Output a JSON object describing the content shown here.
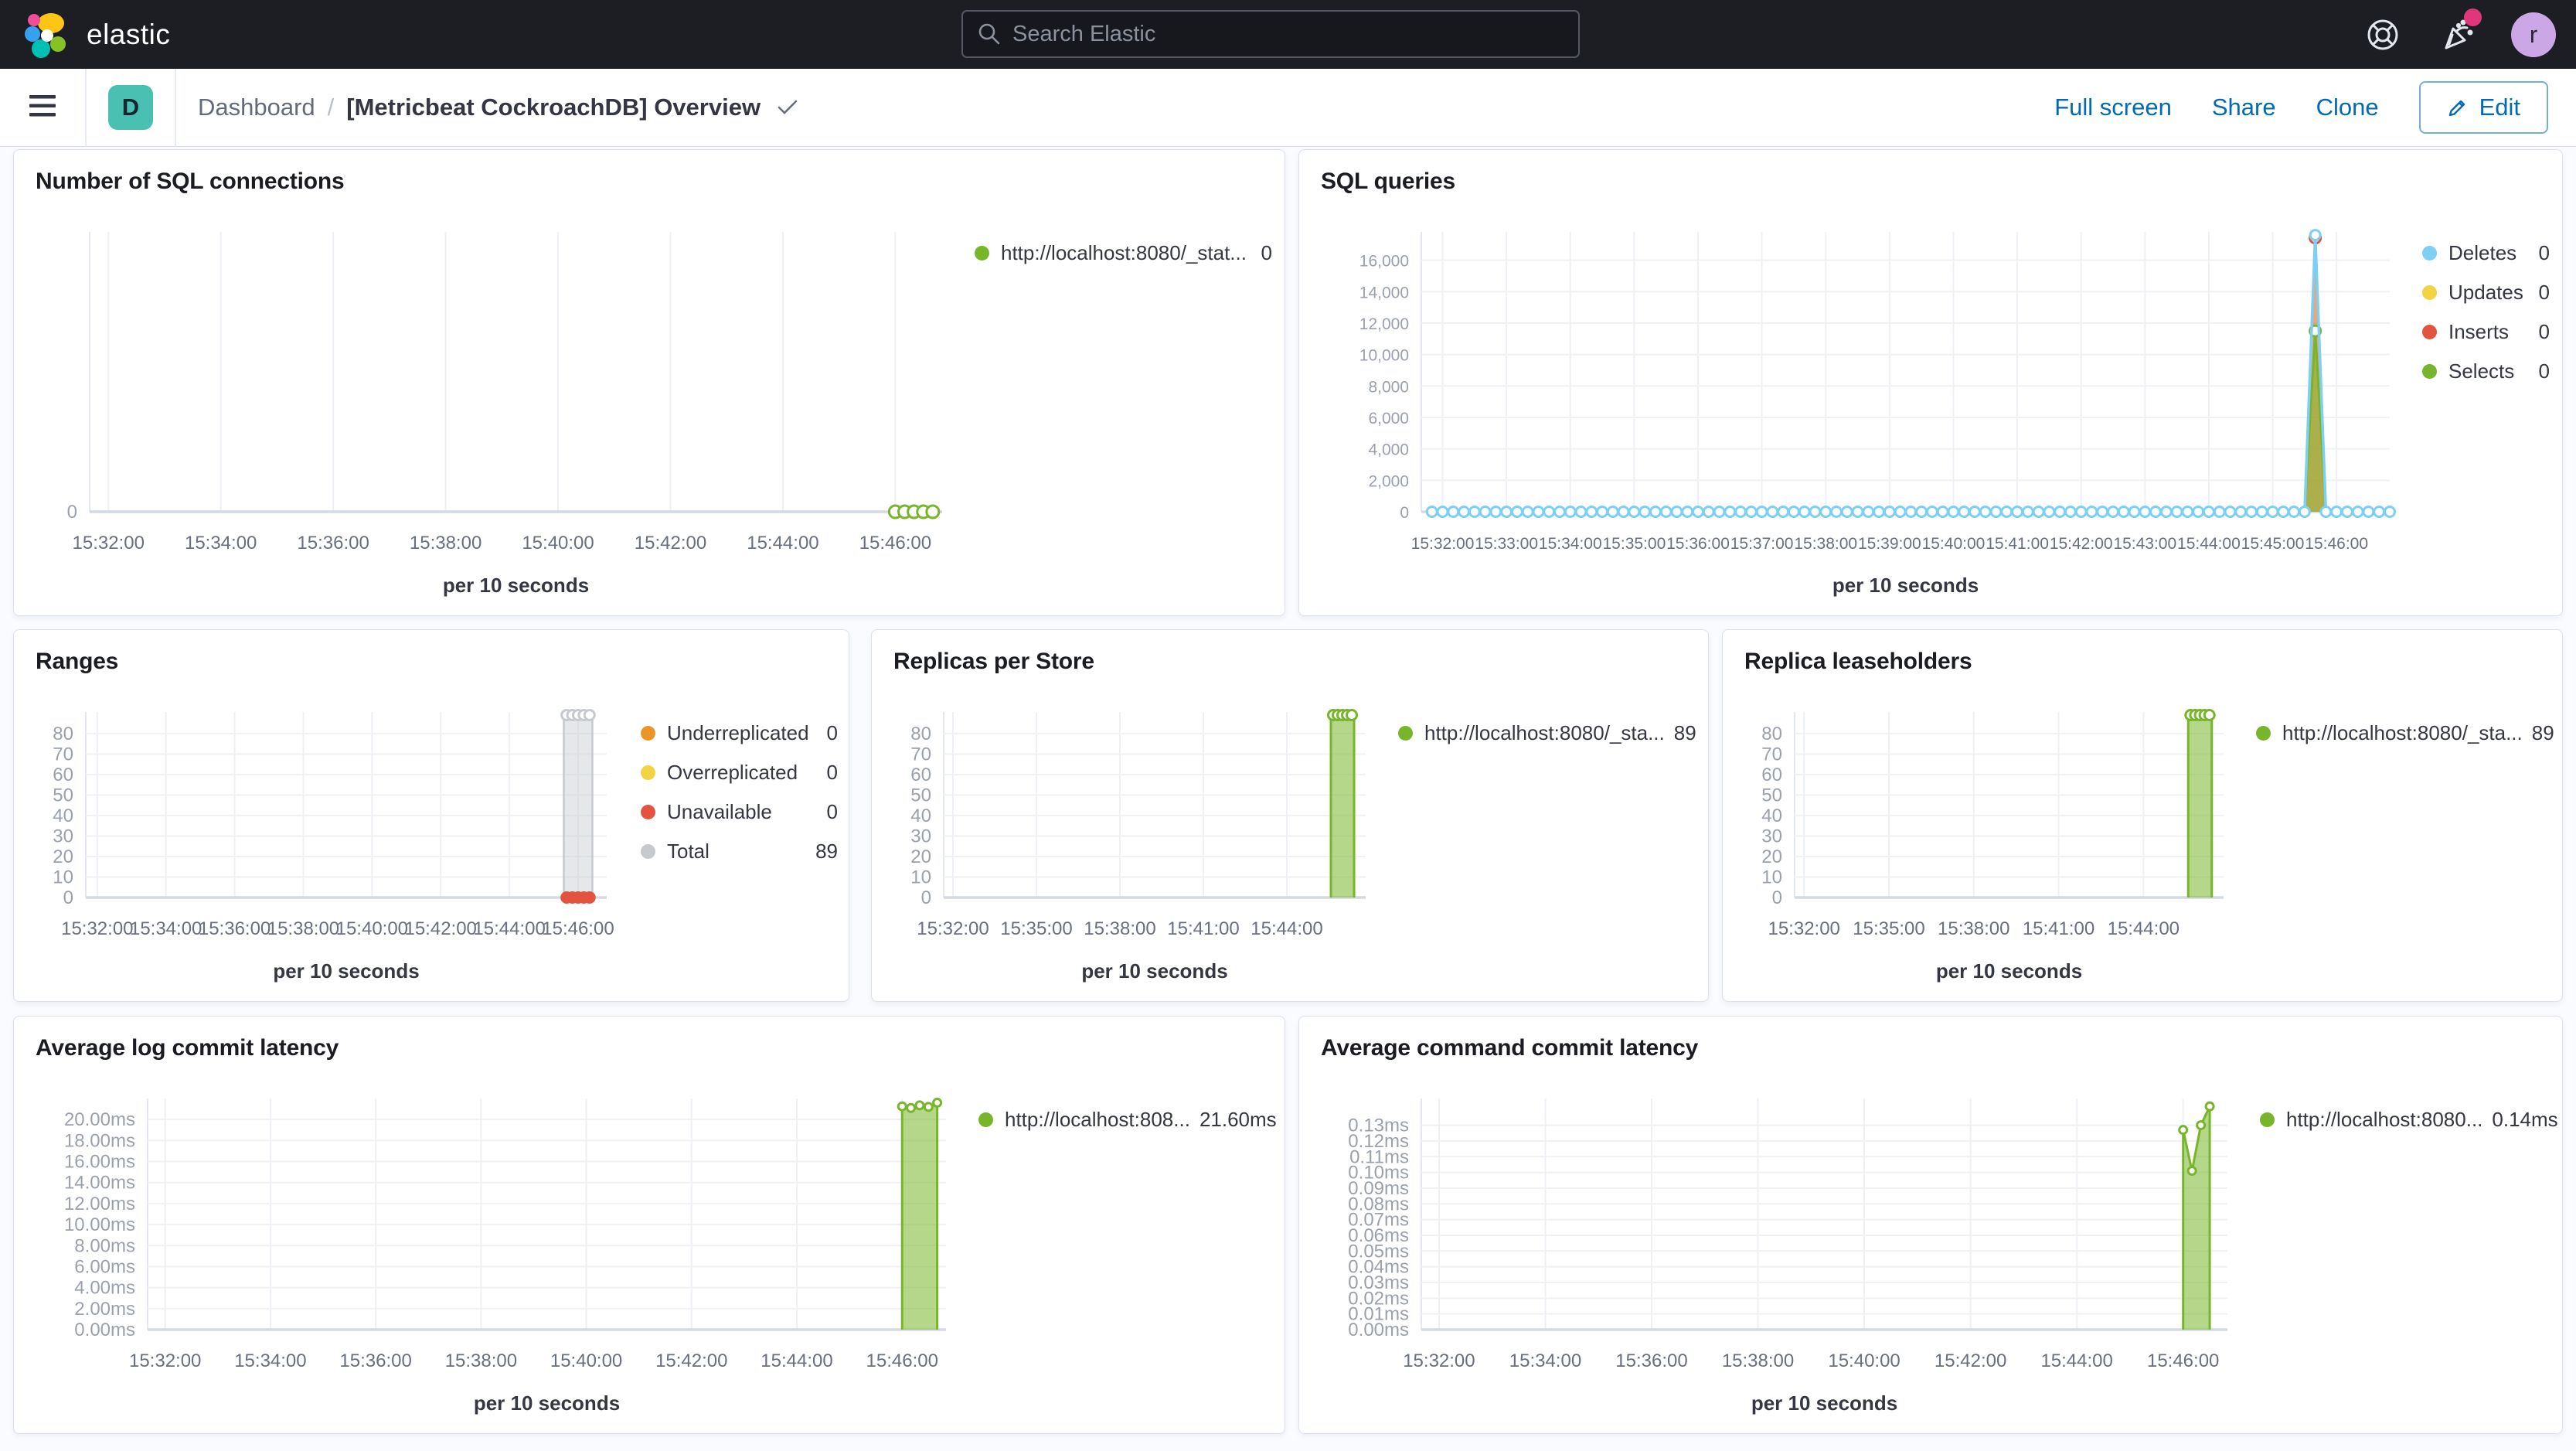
{
  "header": {
    "brand": "elastic",
    "search_placeholder": "Search Elastic",
    "avatar_initial": "r"
  },
  "nav": {
    "breadcrumb_root": "Dashboard",
    "separator": "/",
    "page_title": "[Metricbeat CockroachDB] Overview",
    "dashboard_tile_letter": "D",
    "full_screen": "Full screen",
    "share": "Share",
    "clone": "Clone",
    "edit": "Edit"
  },
  "colors": {
    "header_bg": "#1D1E24",
    "link_blue": "#006BB4",
    "series_green": "#77B62A",
    "series_blue": "#7DCFF5",
    "series_red": "#E2543F",
    "series_yellow": "#F1D343",
    "series_orange": "#EB9427",
    "series_gray": "#C6C9CE",
    "badge_pink": "#E0367A",
    "tile_teal": "#49C0B2",
    "avatar_purple": "#CBA7E6"
  },
  "chart_data": [
    {
      "id": "sql-connections",
      "type": "line",
      "title": "Number of SQL connections",
      "xlabel": "per 10 seconds",
      "x_ticks": [
        "15:32:00",
        "15:34:00",
        "15:36:00",
        "15:38:00",
        "15:40:00",
        "15:42:00",
        "15:44:00",
        "15:46:00"
      ],
      "y_ticks": [
        {
          "v": 0,
          "label": "0"
        }
      ],
      "y_max": 4,
      "series": [
        {
          "name": "http://localhost:8080/_stat...",
          "color": "#77B62A",
          "type": "line",
          "line_width": 4,
          "marker_r": 8,
          "markers": "all",
          "points": [
            [
              "15:46:00",
              0
            ],
            [
              "15:46:10",
              0
            ],
            [
              "15:46:20",
              0
            ],
            [
              "15:46:30",
              0
            ],
            [
              "15:46:40",
              0
            ]
          ]
        }
      ],
      "legend": [
        {
          "label": "http://localhost:8080/_stat...",
          "value": "0",
          "color": "#77B62A"
        }
      ]
    },
    {
      "id": "sql-queries",
      "type": "area",
      "title": "SQL queries",
      "xlabel": "per 10 seconds",
      "x_ticks": [
        "15:32:00",
        "15:33:00",
        "15:34:00",
        "15:35:00",
        "15:36:00",
        "15:37:00",
        "15:38:00",
        "15:39:00",
        "15:40:00",
        "15:41:00",
        "15:42:00",
        "15:43:00",
        "15:44:00",
        "15:45:00",
        "15:46:00"
      ],
      "y_ticks": [
        {
          "v": 0,
          "label": "0"
        },
        {
          "v": 2000,
          "label": "2,000"
        },
        {
          "v": 4000,
          "label": "4,000"
        },
        {
          "v": 6000,
          "label": "6,000"
        },
        {
          "v": 8000,
          "label": "8,000"
        },
        {
          "v": 10000,
          "label": "10,000"
        },
        {
          "v": 12000,
          "label": "12,000"
        },
        {
          "v": 14000,
          "label": "14,000"
        },
        {
          "v": 16000,
          "label": "16,000"
        }
      ],
      "y_max": 17800,
      "series": [
        {
          "name": "Updates",
          "color": "#F1D343",
          "type": "area",
          "fill": "rgba(241,211,67,0.5)",
          "line_width": 3,
          "marker_r": 7,
          "points": [
            [
              "15:45:30",
              0
            ],
            [
              "15:45:40",
              17500
            ],
            [
              "15:45:50",
              0
            ]
          ],
          "markers": [
            "15:45:40"
          ]
        },
        {
          "name": "Inserts",
          "color": "#E2543F",
          "type": "area",
          "fill": "rgba(226,84,63,0.45)",
          "line_width": 3,
          "marker_r": 7,
          "points": [
            [
              "15:45:30",
              0
            ],
            [
              "15:45:40",
              17420
            ],
            [
              "15:45:50",
              0
            ]
          ],
          "markers": [
            "15:45:40"
          ]
        },
        {
          "name": "Selects",
          "color": "#77B62A",
          "type": "area",
          "fill": "rgba(119,182,42,0.55)",
          "line_width": 3,
          "marker_r": 7,
          "points": [
            [
              "15:45:30",
              0
            ],
            [
              "15:45:40",
              11500
            ],
            [
              "15:45:50",
              0
            ]
          ],
          "markers": [
            "15:45:40"
          ]
        },
        {
          "name": "Deletes",
          "color": "#7DCFF5",
          "type": "line",
          "line_width": 3.5,
          "marker_r": 6.5,
          "markers": "all",
          "flat": {
            "from": "15:31:50",
            "to": "15:46:50",
            "interval_s": 10,
            "value": 0
          },
          "overrides": [
            [
              "15:45:40",
              17600
            ]
          ]
        }
      ],
      "legend": [
        {
          "label": "Deletes",
          "value": "0",
          "color": "#7DCFF5"
        },
        {
          "label": "Updates",
          "value": "0",
          "color": "#F1D343"
        },
        {
          "label": "Inserts",
          "value": "0",
          "color": "#E2543F"
        },
        {
          "label": "Selects",
          "value": "0",
          "color": "#77B62A"
        }
      ]
    },
    {
      "id": "ranges",
      "type": "area",
      "title": "Ranges",
      "xlabel": "per 10 seconds",
      "x_ticks": [
        "15:32:00",
        "15:34:00",
        "15:36:00",
        "15:38:00",
        "15:40:00",
        "15:42:00",
        "15:44:00",
        "15:46:00"
      ],
      "y_ticks": [
        {
          "v": 0,
          "label": "0"
        },
        {
          "v": 10,
          "label": "10"
        },
        {
          "v": 20,
          "label": "20"
        },
        {
          "v": 30,
          "label": "30"
        },
        {
          "v": 40,
          "label": "40"
        },
        {
          "v": 50,
          "label": "50"
        },
        {
          "v": 60,
          "label": "60"
        },
        {
          "v": 70,
          "label": "70"
        },
        {
          "v": 80,
          "label": "80"
        }
      ],
      "y_max": 90.5,
      "series": [
        {
          "name": "Total",
          "color": "#C6C9CE",
          "type": "area",
          "fill": "rgba(198,201,206,0.45)",
          "line_width": 2.5,
          "marker_r": 6.5,
          "points": [
            [
              "15:45:35",
              0
            ],
            [
              "15:45:35",
              89
            ],
            [
              "15:45:40",
              89
            ],
            [
              "15:45:50",
              89
            ],
            [
              "15:46:00",
              89
            ],
            [
              "15:46:10",
              89
            ],
            [
              "15:46:20",
              89
            ],
            [
              "15:46:25",
              89
            ],
            [
              "15:46:25",
              0
            ]
          ],
          "markers": [
            "15:45:40",
            "15:45:50",
            "15:46:00",
            "15:46:10",
            "15:46:20"
          ]
        },
        {
          "name": "Unavailable",
          "color": "#E2543F",
          "type": "line",
          "line_width": 3,
          "marker_r": 6.5,
          "marker_filled": true,
          "markers": "all",
          "points": [
            [
              "15:45:40",
              0
            ],
            [
              "15:45:50",
              0
            ],
            [
              "15:46:00",
              0
            ],
            [
              "15:46:10",
              0
            ],
            [
              "15:46:20",
              0
            ]
          ]
        }
      ],
      "legend": [
        {
          "label": "Underreplicated",
          "value": "0",
          "color": "#EB9427"
        },
        {
          "label": "Overreplicated",
          "value": "0",
          "color": "#F1D343"
        },
        {
          "label": "Unavailable",
          "value": "0",
          "color": "#E2543F"
        },
        {
          "label": "Total",
          "value": "89",
          "color": "#C6C9CE"
        }
      ]
    },
    {
      "id": "replicas-per-store",
      "type": "area",
      "title": "Replicas per Store",
      "xlabel": "per 10 seconds",
      "x_ticks": [
        "15:32:00",
        "15:35:00",
        "15:38:00",
        "15:41:00",
        "15:44:00"
      ],
      "y_ticks": [
        {
          "v": 0,
          "label": "0"
        },
        {
          "v": 10,
          "label": "10"
        },
        {
          "v": 20,
          "label": "20"
        },
        {
          "v": 30,
          "label": "30"
        },
        {
          "v": 40,
          "label": "40"
        },
        {
          "v": 50,
          "label": "50"
        },
        {
          "v": 60,
          "label": "60"
        },
        {
          "v": 70,
          "label": "70"
        },
        {
          "v": 80,
          "label": "80"
        }
      ],
      "y_max": 90.5,
      "series": [
        {
          "name": "http://localhost:8080/_sta...",
          "color": "#77B62A",
          "type": "area",
          "fill": "rgba(119,182,42,0.55)",
          "line_width": 3,
          "marker_r": 6.5,
          "points": [
            [
              "15:45:35",
              0
            ],
            [
              "15:45:35",
              89
            ],
            [
              "15:45:40",
              89
            ],
            [
              "15:45:50",
              89
            ],
            [
              "15:46:00",
              89
            ],
            [
              "15:46:10",
              89
            ],
            [
              "15:46:20",
              89
            ],
            [
              "15:46:25",
              89
            ],
            [
              "15:46:25",
              0
            ]
          ],
          "markers": [
            "15:45:40",
            "15:45:50",
            "15:46:00",
            "15:46:10",
            "15:46:20"
          ]
        }
      ],
      "legend": [
        {
          "label": "http://localhost:8080/_sta...",
          "value": "89",
          "color": "#77B62A"
        }
      ]
    },
    {
      "id": "replica-leaseholders",
      "type": "area",
      "title": "Replica leaseholders",
      "xlabel": "per 10 seconds",
      "x_ticks": [
        "15:32:00",
        "15:35:00",
        "15:38:00",
        "15:41:00",
        "15:44:00"
      ],
      "y_ticks": [
        {
          "v": 0,
          "label": "0"
        },
        {
          "v": 10,
          "label": "10"
        },
        {
          "v": 20,
          "label": "20"
        },
        {
          "v": 30,
          "label": "30"
        },
        {
          "v": 40,
          "label": "40"
        },
        {
          "v": 50,
          "label": "50"
        },
        {
          "v": 60,
          "label": "60"
        },
        {
          "v": 70,
          "label": "70"
        },
        {
          "v": 80,
          "label": "80"
        }
      ],
      "y_max": 90.5,
      "series": [
        {
          "name": "http://localhost:8080/_sta...",
          "color": "#77B62A",
          "type": "area",
          "fill": "rgba(119,182,42,0.55)",
          "line_width": 3,
          "marker_r": 6.5,
          "points": [
            [
              "15:45:35",
              0
            ],
            [
              "15:45:35",
              89
            ],
            [
              "15:45:40",
              89
            ],
            [
              "15:45:50",
              89
            ],
            [
              "15:46:00",
              89
            ],
            [
              "15:46:10",
              89
            ],
            [
              "15:46:20",
              89
            ],
            [
              "15:46:25",
              89
            ],
            [
              "15:46:25",
              0
            ]
          ],
          "markers": [
            "15:45:40",
            "15:45:50",
            "15:46:00",
            "15:46:10",
            "15:46:20"
          ]
        }
      ],
      "legend": [
        {
          "label": "http://localhost:8080/_sta...",
          "value": "89",
          "color": "#77B62A"
        }
      ]
    },
    {
      "id": "avg-log-commit-latency",
      "type": "area",
      "title": "Average log commit latency",
      "xlabel": "per 10 seconds",
      "x_ticks": [
        "15:32:00",
        "15:34:00",
        "15:36:00",
        "15:38:00",
        "15:40:00",
        "15:42:00",
        "15:44:00",
        "15:46:00"
      ],
      "y_ticks": [
        {
          "v": 0,
          "label": "0.00ms"
        },
        {
          "v": 2,
          "label": "2.00ms"
        },
        {
          "v": 4,
          "label": "4.00ms"
        },
        {
          "v": 6,
          "label": "6.00ms"
        },
        {
          "v": 8,
          "label": "8.00ms"
        },
        {
          "v": 10,
          "label": "10.00ms"
        },
        {
          "v": 12,
          "label": "12.00ms"
        },
        {
          "v": 14,
          "label": "14.00ms"
        },
        {
          "v": 16,
          "label": "16.00ms"
        },
        {
          "v": 18,
          "label": "18.00ms"
        },
        {
          "v": 20,
          "label": "20.00ms"
        }
      ],
      "y_max": 22,
      "series": [
        {
          "name": "http://localhost:808...",
          "color": "#77B62A",
          "type": "area",
          "fill": "rgba(119,182,42,0.55)",
          "line_width": 3,
          "marker_r": 5,
          "points": [
            [
              "15:46:00",
              0
            ],
            [
              "15:46:00",
              21.25
            ],
            [
              "15:46:10",
              21.1
            ],
            [
              "15:46:20",
              21.35
            ],
            [
              "15:46:30",
              21.2
            ],
            [
              "15:46:40",
              21.6
            ],
            [
              "15:46:40",
              0
            ]
          ],
          "markers": [
            "15:46:00",
            "15:46:10",
            "15:46:20",
            "15:46:30",
            "15:46:40"
          ]
        }
      ],
      "legend": [
        {
          "label": "http://localhost:808...",
          "value": "21.60ms",
          "color": "#77B62A"
        }
      ]
    },
    {
      "id": "avg-command-commit-latency",
      "type": "area",
      "title": "Average command commit latency",
      "xlabel": "per 10 seconds",
      "x_ticks": [
        "15:32:00",
        "15:34:00",
        "15:36:00",
        "15:38:00",
        "15:40:00",
        "15:42:00",
        "15:44:00",
        "15:46:00"
      ],
      "y_ticks": [
        {
          "v": 0,
          "label": "0.00ms"
        },
        {
          "v": 0.01,
          "label": "0.01ms"
        },
        {
          "v": 0.02,
          "label": "0.02ms"
        },
        {
          "v": 0.03,
          "label": "0.03ms"
        },
        {
          "v": 0.04,
          "label": "0.04ms"
        },
        {
          "v": 0.05,
          "label": "0.05ms"
        },
        {
          "v": 0.06,
          "label": "0.06ms"
        },
        {
          "v": 0.07,
          "label": "0.07ms"
        },
        {
          "v": 0.08,
          "label": "0.08ms"
        },
        {
          "v": 0.09,
          "label": "0.09ms"
        },
        {
          "v": 0.1,
          "label": "0.10ms"
        },
        {
          "v": 0.11,
          "label": "0.11ms"
        },
        {
          "v": 0.12,
          "label": "0.12ms"
        },
        {
          "v": 0.13,
          "label": "0.13ms"
        }
      ],
      "y_max": 0.147,
      "series": [
        {
          "name": "http://localhost:8080...",
          "color": "#77B62A",
          "type": "area",
          "fill": "rgba(119,182,42,0.55)",
          "line_width": 3,
          "marker_r": 5,
          "points": [
            [
              "15:46:00",
              0
            ],
            [
              "15:46:00",
              0.127
            ],
            [
              "15:46:10",
              0.101
            ],
            [
              "15:46:20",
              0.13
            ],
            [
              "15:46:30",
              0.142
            ],
            [
              "15:46:30",
              0
            ]
          ],
          "markers": [
            "15:46:00",
            "15:46:10",
            "15:46:20",
            "15:46:30"
          ]
        }
      ],
      "legend": [
        {
          "label": "http://localhost:8080...",
          "value": "0.14ms",
          "color": "#77B62A"
        }
      ]
    }
  ]
}
